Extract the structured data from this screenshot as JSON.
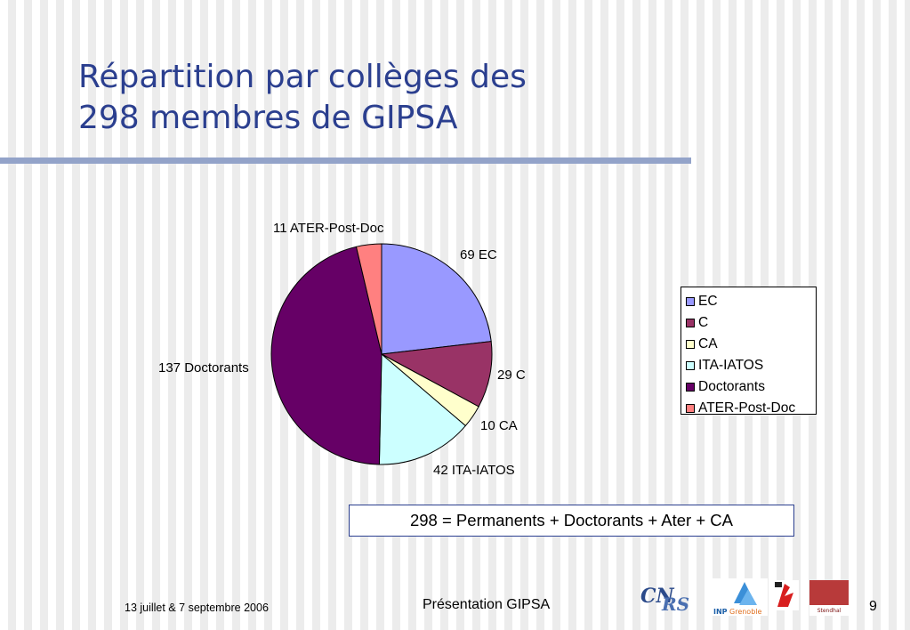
{
  "slide": {
    "title_line1": "Répartition par collèges des",
    "title_line2": "298 membres de GIPSA",
    "formula": "298 = Permanents + Doctorants + Ater + CA",
    "footer_date": "13 juillet & 7 septembre 2006",
    "footer_center": "Présentation GIPSA",
    "page_number": "9",
    "accent_color": "#2b3f8f"
  },
  "logos": [
    {
      "name": "cnrs-logo",
      "text": "CNRS"
    },
    {
      "name": "inp-grenoble-logo",
      "text": "INPGrenoble"
    },
    {
      "name": "ujf-logo",
      "text": ""
    },
    {
      "name": "stendhal-logo",
      "text": "Stendhal"
    }
  ],
  "chart_data": {
    "type": "pie",
    "categories": [
      "EC",
      "C",
      "CA",
      "ITA-IATOS",
      "Doctorants",
      "ATER-Post-Doc"
    ],
    "values": [
      69,
      29,
      10,
      42,
      137,
      11
    ],
    "data_labels": [
      "69 EC",
      "29 C",
      "10 CA",
      "42 ITA-IATOS",
      "137 Doctorants",
      "11 ATER-Post-Doc"
    ],
    "colors": [
      "#9999ff",
      "#993366",
      "#ffffcc",
      "#ccffff",
      "#660066",
      "#ff8080"
    ],
    "legend_placement": "right",
    "start_angle": "12 o'clock",
    "direction": "clockwise"
  }
}
